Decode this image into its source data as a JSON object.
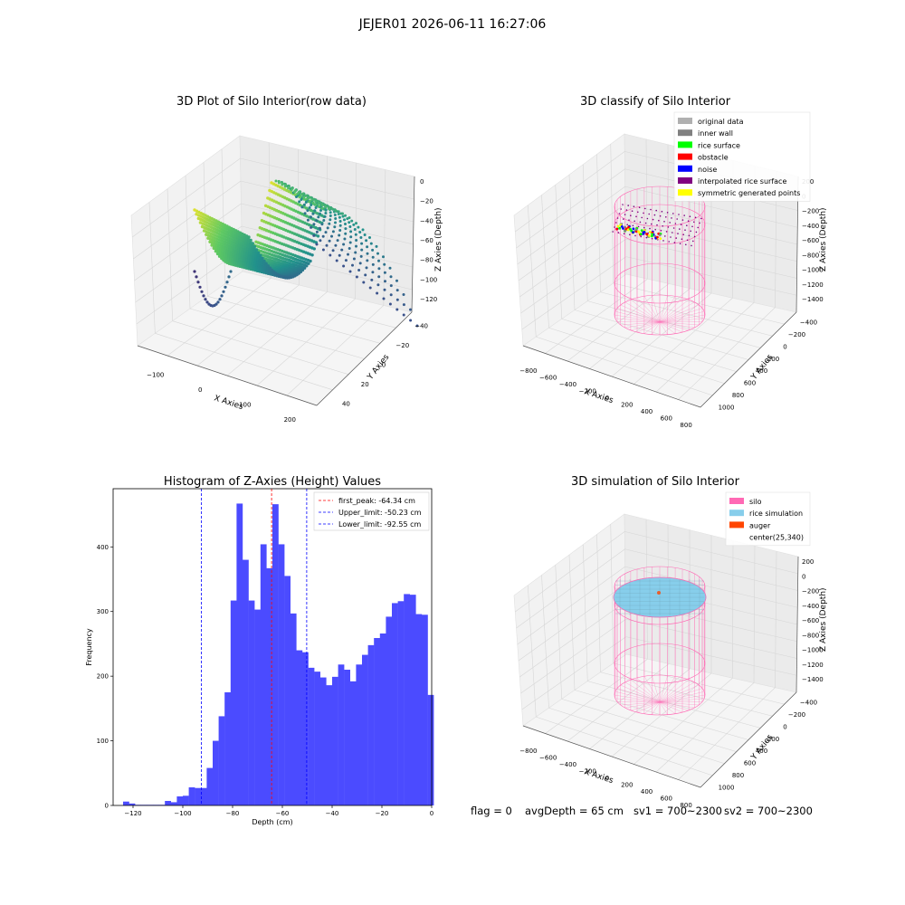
{
  "suptitle": "JEJER01 2026-06-11 16:27:06",
  "chart_data": [
    {
      "type": "scatter3d",
      "title": "3D Plot of Silo Interior(row data)",
      "xlabel": "X Axies",
      "ylabel": "Y Axies",
      "zlabel": "Z Axies (Depth)",
      "x_ticks": [
        "−100",
        "0",
        "100",
        "200"
      ],
      "y_ticks": [
        "−40",
        "−20",
        "0",
        "20",
        "40"
      ],
      "z_ticks": [
        "0",
        "−20",
        "−40",
        "−60",
        "−80",
        "−100",
        "−120"
      ],
      "colormap": "viridis",
      "grid": true
    },
    {
      "type": "scatter3d",
      "title": "3D classify of Silo Interior",
      "xlabel": "X Axies",
      "ylabel": "Y Axies",
      "zlabel": "Z Axies (Depth)",
      "x_ticks": [
        "−800",
        "−600",
        "−400",
        "−200",
        "0",
        "200",
        "400",
        "600",
        "800"
      ],
      "y_ticks": [
        "−400",
        "−200",
        "0",
        "200",
        "400",
        "600",
        "800",
        "1000"
      ],
      "z_ticks": [
        "200",
        "0",
        "−200",
        "−400",
        "−600",
        "−800",
        "−1000",
        "−1200",
        "−1400"
      ],
      "legend_position": "top-right",
      "legend": [
        {
          "label": "original data",
          "color": "#b0b0b0"
        },
        {
          "label": "inner wall",
          "color": "#808080"
        },
        {
          "label": "rice surface",
          "color": "#00ff00"
        },
        {
          "label": "obstacle",
          "color": "#ff0000"
        },
        {
          "label": "noise",
          "color": "#0000ff"
        },
        {
          "label": "interpolated rice surface",
          "color": "#800080"
        },
        {
          "label": "symmetric generated points",
          "color": "#ffff00"
        }
      ],
      "grid": true
    },
    {
      "type": "bar",
      "title": "Histogram of Z-Axies (Height) Values",
      "xlabel": "Depth (cm)",
      "ylabel": "Frequency",
      "xlim": [
        -128,
        0
      ],
      "ylim": [
        0,
        490
      ],
      "x_ticks": [
        -120,
        -100,
        -80,
        -60,
        -40,
        -20,
        0
      ],
      "y_ticks": [
        0,
        100,
        200,
        300,
        400
      ],
      "bar_color": "#4b4bff",
      "bin_start": -124,
      "bin_width": 2.4,
      "values": [
        6,
        3,
        1,
        1,
        1,
        1,
        1,
        7,
        5,
        14,
        15,
        28,
        27,
        27,
        58,
        100,
        138,
        175,
        317,
        467,
        380,
        317,
        303,
        404,
        367,
        466,
        404,
        355,
        297,
        240,
        237,
        213,
        207,
        198,
        186,
        199,
        218,
        210,
        192,
        218,
        233,
        248,
        259,
        266,
        292,
        313,
        316,
        327,
        326,
        296,
        295,
        171
      ],
      "vlines": [
        {
          "label": "first_peak: -64.34 cm",
          "x": -64.34,
          "color": "#ff0000"
        },
        {
          "label": "Upper_limit: -50.23 cm",
          "x": -50.23,
          "color": "#0000ff"
        },
        {
          "label": "Lower_limit: -92.55 cm",
          "x": -92.55,
          "color": "#0000ff"
        }
      ],
      "legend_position": "top-right"
    },
    {
      "type": "scatter3d",
      "title": "3D simulation of Silo Interior",
      "xlabel": "X Axies",
      "ylabel": "Y Axies",
      "zlabel": "Z Axies (Depth)",
      "x_ticks": [
        "−800",
        "−600",
        "−400",
        "−200",
        "0",
        "200",
        "400",
        "600",
        "800"
      ],
      "y_ticks": [
        "−400",
        "−200",
        "0",
        "200",
        "400",
        "600",
        "800",
        "1000"
      ],
      "z_ticks": [
        "200",
        "0",
        "−200",
        "−400",
        "−600",
        "−800",
        "−1000",
        "−1200",
        "−1400"
      ],
      "legend_position": "top-right",
      "legend": [
        {
          "label": "silo",
          "color": "#ff69b4"
        },
        {
          "label": "rice simulation",
          "color": "#87ceeb"
        },
        {
          "label": "auger",
          "color": "#ff4500"
        },
        {
          "label": "center(25,340)",
          "color": "#ffffff"
        }
      ],
      "grid": true
    }
  ],
  "status": {
    "flag": "flag = 0",
    "avg_depth": "avgDepth = 65 cm",
    "sv1": "sv1 = 700~2300",
    "sv2": "sv2 = 700~2300"
  }
}
